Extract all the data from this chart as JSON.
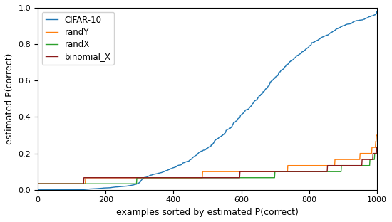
{
  "title": "",
  "xlabel": "examples sorted by estimated P(correct)",
  "ylabel": "estimated P(correct)",
  "xlim": [
    0,
    1000
  ],
  "ylim": [
    0,
    1.0
  ],
  "legend_labels": [
    "CIFAR-10",
    "randY",
    "randX",
    "binomial_X"
  ],
  "line_colors": [
    "#1f77b4",
    "#ff7f0e",
    "#2ca02c",
    "#8B1A1A"
  ],
  "n_points": 1000,
  "figsize": [
    5.5,
    3.12
  ],
  "dpi": 100
}
